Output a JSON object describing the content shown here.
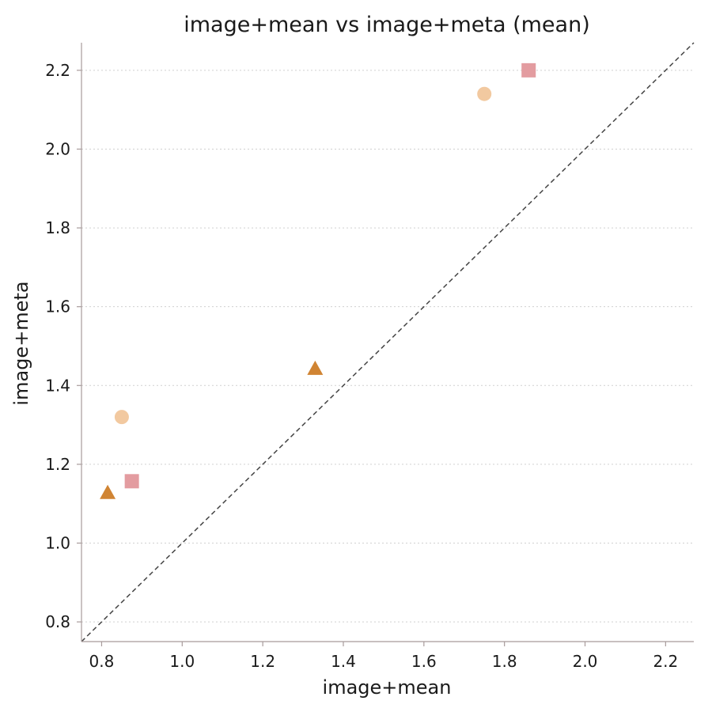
{
  "chart_data": {
    "type": "scatter",
    "title": "image+mean vs image+meta (mean)",
    "xlabel": "image+mean",
    "ylabel": "image+meta",
    "xlim": [
      0.75,
      2.27
    ],
    "ylim": [
      0.75,
      2.27
    ],
    "xticks": [
      "0.8",
      "1.0",
      "1.2",
      "1.4",
      "1.6",
      "1.8",
      "2.0",
      "2.2"
    ],
    "yticks": [
      "0.8",
      "1.0",
      "1.2",
      "1.4",
      "1.6",
      "1.8",
      "2.0",
      "2.2"
    ],
    "grid": "horizontal dotted",
    "reference_line": "y = x (dashed)",
    "series": [
      {
        "marker": "circle",
        "color": "#f2c9a0",
        "points": [
          {
            "x": 0.85,
            "y": 1.32
          },
          {
            "x": 1.75,
            "y": 2.14
          }
        ]
      },
      {
        "marker": "square",
        "color": "#e39ca0",
        "points": [
          {
            "x": 0.875,
            "y": 1.157
          },
          {
            "x": 1.86,
            "y": 2.2
          }
        ]
      },
      {
        "marker": "triangle",
        "color": "#d08433",
        "points": [
          {
            "x": 0.815,
            "y": 1.128
          },
          {
            "x": 1.33,
            "y": 1.443
          }
        ]
      }
    ]
  }
}
